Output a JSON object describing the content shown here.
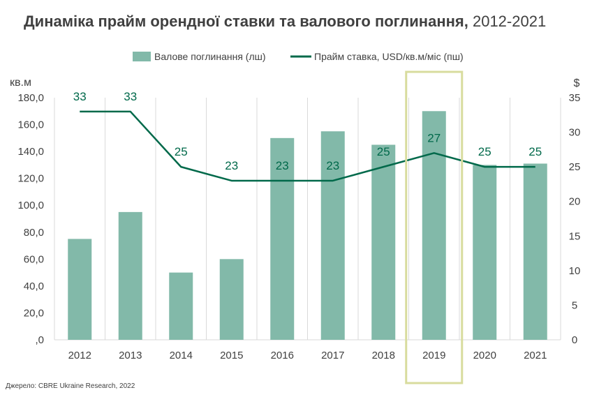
{
  "title": {
    "bold": "Динаміка прайм орендної ставки та валового поглинання,",
    "years": " 2012-2021"
  },
  "source": "Джерело: CBRE Ukraine Research, 2022",
  "colors": {
    "bar": "#82b9a9",
    "line": "#00694a",
    "highlight": "#d8dc9e",
    "grid": "#d9d9d9"
  },
  "chart_data": {
    "type": "bar",
    "categories": [
      "2012",
      "2013",
      "2014",
      "2015",
      "2016",
      "2017",
      "2018",
      "2019",
      "2020",
      "2021"
    ],
    "series": [
      {
        "name": "Валове поглинання (лш)",
        "type": "bar",
        "axis": "left",
        "values": [
          75,
          95,
          50,
          60,
          150,
          155,
          145,
          170,
          130,
          131
        ]
      },
      {
        "name": "Прайм ставка, USD/кв.м/міс (пш)",
        "type": "line",
        "axis": "right",
        "values": [
          33,
          33,
          25,
          23,
          23,
          23,
          25,
          27,
          25,
          25
        ],
        "data_labels": [
          "33",
          "33",
          "25",
          "23",
          "23",
          "23",
          "25",
          "27",
          "25",
          "25"
        ]
      }
    ],
    "left_axis": {
      "unit": "кв.м",
      "ylim": [
        0,
        180
      ],
      "ticks": [
        ",0",
        "20,0",
        "40,0",
        "60,0",
        "80,0",
        "100,0",
        "120,0",
        "140,0",
        "160,0",
        "180,0"
      ]
    },
    "right_axis": {
      "unit": "$",
      "ylim": [
        0,
        35
      ],
      "ticks": [
        "0",
        "5",
        "10",
        "15",
        "20",
        "25",
        "30",
        "35"
      ]
    },
    "highlight_category": "2019",
    "legend_position": "top-center",
    "grid": "vertical"
  }
}
